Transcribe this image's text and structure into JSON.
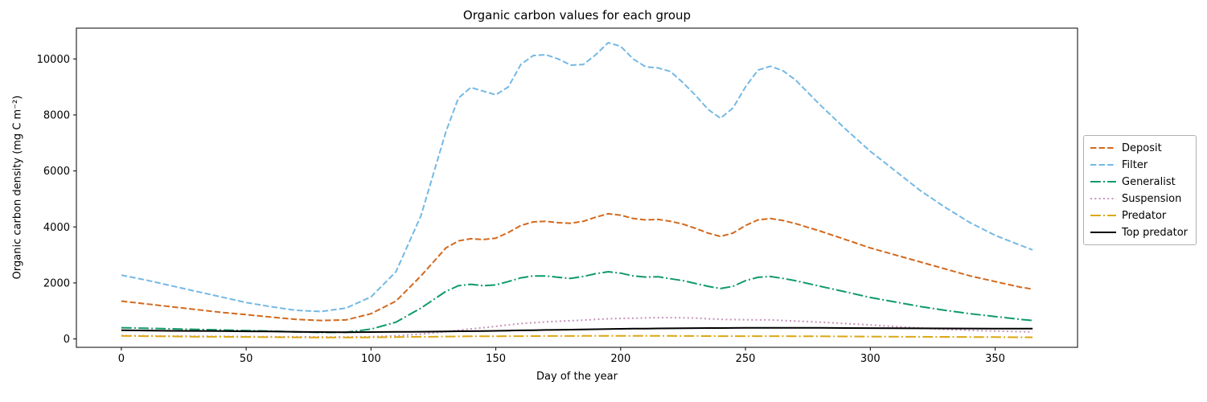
{
  "figure": {
    "background": "#ffffff"
  },
  "chart_data": {
    "type": "line",
    "title": "Organic carbon values for each group",
    "xlabel": "Day of the year",
    "ylabel": "Organic carbon density (mg C m⁻²)",
    "xlim": [
      -18,
      383
    ],
    "ylim": [
      -300,
      11100
    ],
    "xticks": [
      0,
      50,
      100,
      150,
      200,
      250,
      300,
      350
    ],
    "yticks": [
      0,
      2000,
      4000,
      6000,
      8000,
      10000
    ],
    "grid": false,
    "legend_position": "center-right-outside",
    "x": [
      0,
      10,
      20,
      30,
      40,
      50,
      60,
      70,
      80,
      90,
      100,
      110,
      120,
      130,
      135,
      140,
      145,
      150,
      155,
      160,
      165,
      170,
      175,
      180,
      185,
      190,
      195,
      200,
      205,
      210,
      215,
      220,
      225,
      230,
      235,
      240,
      245,
      250,
      255,
      260,
      265,
      270,
      280,
      290,
      300,
      310,
      320,
      330,
      340,
      350,
      360,
      365
    ],
    "series": [
      {
        "name": "Deposit",
        "color": "#d2691e",
        "linestyle": "dashed",
        "values": [
          1350,
          1250,
          1150,
          1050,
          950,
          870,
          780,
          700,
          660,
          680,
          900,
          1350,
          2250,
          3250,
          3500,
          3580,
          3550,
          3600,
          3800,
          4050,
          4180,
          4200,
          4150,
          4130,
          4200,
          4350,
          4470,
          4420,
          4300,
          4250,
          4270,
          4200,
          4100,
          3950,
          3780,
          3660,
          3780,
          4050,
          4250,
          4300,
          4230,
          4120,
          3850,
          3550,
          3250,
          3000,
          2750,
          2500,
          2250,
          2050,
          1850,
          1780
        ]
      },
      {
        "name": "Filter",
        "color": "#74b9e4",
        "linestyle": "dashed",
        "values": [
          2280,
          2100,
          1900,
          1700,
          1500,
          1300,
          1150,
          1020,
          980,
          1100,
          1500,
          2400,
          4400,
          7400,
          8600,
          8980,
          8850,
          8720,
          9000,
          9800,
          10120,
          10150,
          10000,
          9780,
          9800,
          10150,
          10580,
          10450,
          10000,
          9720,
          9680,
          9550,
          9150,
          8700,
          8200,
          7880,
          8250,
          9000,
          9600,
          9740,
          9580,
          9250,
          8350,
          7500,
          6700,
          6000,
          5300,
          4700,
          4150,
          3700,
          3350,
          3180
        ]
      },
      {
        "name": "Generalist",
        "color": "#0f9a68",
        "linestyle": "dashdot",
        "values": [
          400,
          380,
          360,
          340,
          320,
          300,
          280,
          250,
          230,
          240,
          350,
          600,
          1100,
          1700,
          1900,
          1950,
          1900,
          1930,
          2050,
          2180,
          2250,
          2250,
          2200,
          2160,
          2230,
          2330,
          2400,
          2350,
          2250,
          2210,
          2220,
          2150,
          2080,
          1980,
          1880,
          1800,
          1880,
          2080,
          2200,
          2230,
          2160,
          2080,
          1880,
          1680,
          1480,
          1320,
          1160,
          1020,
          900,
          800,
          700,
          660
        ]
      },
      {
        "name": "Suspension",
        "color": "#c893bd",
        "linestyle": "dotted",
        "values": [
          120,
          110,
          100,
          95,
          90,
          85,
          80,
          75,
          70,
          70,
          80,
          110,
          170,
          260,
          310,
          360,
          400,
          450,
          500,
          550,
          580,
          610,
          630,
          650,
          670,
          700,
          720,
          730,
          740,
          750,
          760,
          760,
          755,
          745,
          720,
          700,
          690,
          685,
          680,
          680,
          660,
          640,
          600,
          550,
          500,
          440,
          390,
          340,
          305,
          280,
          260,
          250
        ]
      },
      {
        "name": "Predator",
        "color": "#dca713",
        "linestyle": "dashdot",
        "values": [
          110,
          100,
          90,
          80,
          75,
          70,
          62,
          55,
          50,
          50,
          55,
          65,
          75,
          85,
          90,
          92,
          94,
          96,
          98,
          100,
          102,
          104,
          105,
          106,
          107,
          108,
          110,
          110,
          110,
          110,
          110,
          108,
          106,
          104,
          102,
          100,
          100,
          100,
          100,
          100,
          98,
          96,
          92,
          88,
          84,
          80,
          76,
          72,
          68,
          64,
          60,
          58
        ]
      },
      {
        "name": "Top predator",
        "color": "#000000",
        "linestyle": "solid",
        "values": [
          310,
          300,
          290,
          285,
          280,
          272,
          265,
          255,
          245,
          240,
          245,
          250,
          258,
          268,
          273,
          278,
          283,
          290,
          297,
          305,
          313,
          320,
          327,
          333,
          340,
          347,
          355,
          360,
          365,
          370,
          375,
          378,
          382,
          385,
          388,
          390,
          392,
          394,
          396,
          397,
          397,
          396,
          394,
          390,
          386,
          382,
          378,
          375,
          372,
          370,
          368,
          367
        ]
      }
    ]
  }
}
